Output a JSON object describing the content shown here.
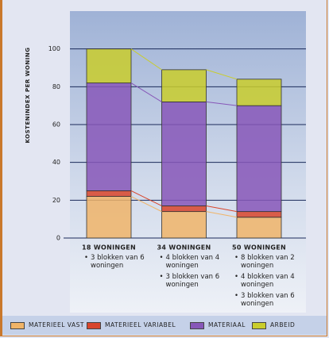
{
  "chart_data": {
    "type": "stacked-bar",
    "y_label": "KOSTENINDEX PER WONING",
    "categories": [
      "18 WONINGEN",
      "34 WONINGEN",
      "50 WONINGEN"
    ],
    "category_notes": [
      [
        "3 blokken van 6 woningen"
      ],
      [
        "4 blokken van 4 woningen",
        "3 blokken van 6 woningen"
      ],
      [
        "8 blokken van 2 woningen",
        "4 blokken van 4 woningen",
        "3 blokken van 6 woningen"
      ]
    ],
    "series": [
      {
        "name": "MATERIEEL VAST",
        "color": "#f0b468",
        "values": [
          22,
          14,
          11
        ]
      },
      {
        "name": "MATERIEEL VARIABEL",
        "color": "#d8452c",
        "values": [
          3,
          3,
          3
        ]
      },
      {
        "name": "MATERIAAL",
        "color": "#8757b8",
        "values": [
          57,
          55,
          56
        ]
      },
      {
        "name": "ARBEID",
        "color": "#c9cd2c",
        "values": [
          18,
          17,
          14
        ]
      }
    ],
    "ylim": [
      0,
      120
    ],
    "yticks": [
      0,
      20,
      40,
      60,
      80,
      100
    ],
    "grid": true
  }
}
